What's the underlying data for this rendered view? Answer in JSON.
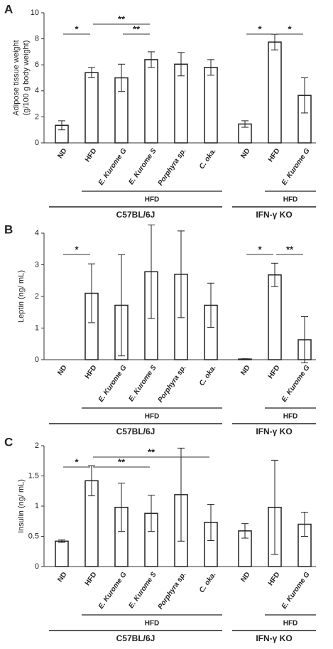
{
  "chart_data": [
    {
      "type": "bar",
      "panel": "A",
      "ylabel": [
        "Adipose tissue weight",
        "(g/100 g body weight)"
      ],
      "categories": [
        "ND",
        "HFD",
        "E. Kurome G",
        "E. Kurome S",
        "Porphyra sp.",
        "C. oka.",
        "ND",
        "HFD",
        "E. Kurome G"
      ],
      "values": [
        1.35,
        5.4,
        5.0,
        6.4,
        6.05,
        5.8,
        1.45,
        7.75,
        3.65
      ],
      "errors": [
        0.35,
        0.4,
        1.05,
        0.6,
        0.9,
        0.6,
        0.25,
        0.6,
        1.35
      ],
      "ylim": [
        0,
        10
      ],
      "yticks": [
        0,
        2,
        4,
        6,
        8,
        10
      ],
      "significance": [
        {
          "between": [
            0,
            1
          ],
          "label": "*"
        },
        {
          "between": [
            2,
            3
          ],
          "label": "**"
        },
        {
          "between": [
            1,
            3
          ],
          "label": "**"
        },
        {
          "between": [
            6,
            7
          ],
          "label": "*"
        },
        {
          "between": [
            7,
            8
          ],
          "label": "*"
        }
      ],
      "groups": [
        {
          "label": "C57BL/6J",
          "span": [
            0,
            5
          ],
          "subgroup": {
            "label": "HFD",
            "span": [
              1,
              5
            ]
          }
        },
        {
          "label": "IFN-γ KO",
          "span": [
            6,
            8
          ],
          "subgroup": {
            "label": "HFD",
            "span": [
              7,
              8
            ]
          }
        }
      ]
    },
    {
      "type": "bar",
      "panel": "B",
      "ylabel": [
        "Leptin (ng/ mL)"
      ],
      "categories": [
        "ND",
        "HFD",
        "E. Kurome G",
        "E. Kurome S",
        "Porphyra sp.",
        "C. oka.",
        "ND",
        "HFD",
        "E. Kurome G"
      ],
      "values": [
        0,
        2.1,
        1.72,
        2.78,
        2.7,
        1.72,
        0.02,
        2.68,
        0.63
      ],
      "errors": [
        0,
        0.93,
        1.6,
        1.48,
        1.37,
        0.7,
        0.01,
        0.37,
        0.73
      ],
      "ylim": [
        0,
        4
      ],
      "yticks": [
        0,
        1,
        2,
        3,
        4
      ],
      "significance": [
        {
          "between": [
            0,
            1
          ],
          "label": "*"
        },
        {
          "between": [
            6,
            7
          ],
          "label": "*"
        },
        {
          "between": [
            7,
            8
          ],
          "label": "**"
        }
      ],
      "groups": [
        {
          "label": "C57BL/6J",
          "span": [
            0,
            5
          ],
          "subgroup": {
            "label": "HFD",
            "span": [
              1,
              5
            ]
          }
        },
        {
          "label": "IFN-γ KO",
          "span": [
            6,
            8
          ],
          "subgroup": {
            "label": "HFD",
            "span": [
              7,
              8
            ]
          }
        }
      ]
    },
    {
      "type": "bar",
      "panel": "C",
      "ylabel": [
        "Insulin (ng/ mL)"
      ],
      "categories": [
        "ND",
        "HFD",
        "E. Kurome G",
        "E. Kurome S",
        "Porphyra sp.",
        "C. oka.",
        "ND",
        "HFD",
        "E. Kurome G"
      ],
      "values": [
        0.42,
        1.42,
        0.98,
        0.88,
        1.19,
        0.73,
        0.59,
        0.98,
        0.7
      ],
      "errors": [
        0.02,
        0.25,
        0.4,
        0.3,
        0.77,
        0.3,
        0.12,
        0.78,
        0.2
      ],
      "ylim": [
        0,
        2
      ],
      "yticks": [
        0,
        0.5,
        1,
        1.5,
        2
      ],
      "significance": [
        {
          "between": [
            0,
            1
          ],
          "label": "*"
        },
        {
          "between": [
            1,
            3
          ],
          "label": "**"
        },
        {
          "between": [
            1,
            5
          ],
          "label": "**"
        }
      ],
      "groups": [
        {
          "label": "C57BL/6J",
          "span": [
            0,
            5
          ],
          "subgroup": {
            "label": "HFD",
            "span": [
              1,
              5
            ]
          }
        },
        {
          "label": "IFN-γ KO",
          "span": [
            6,
            8
          ],
          "subgroup": {
            "label": "HFD",
            "span": [
              7,
              8
            ]
          }
        }
      ]
    }
  ]
}
